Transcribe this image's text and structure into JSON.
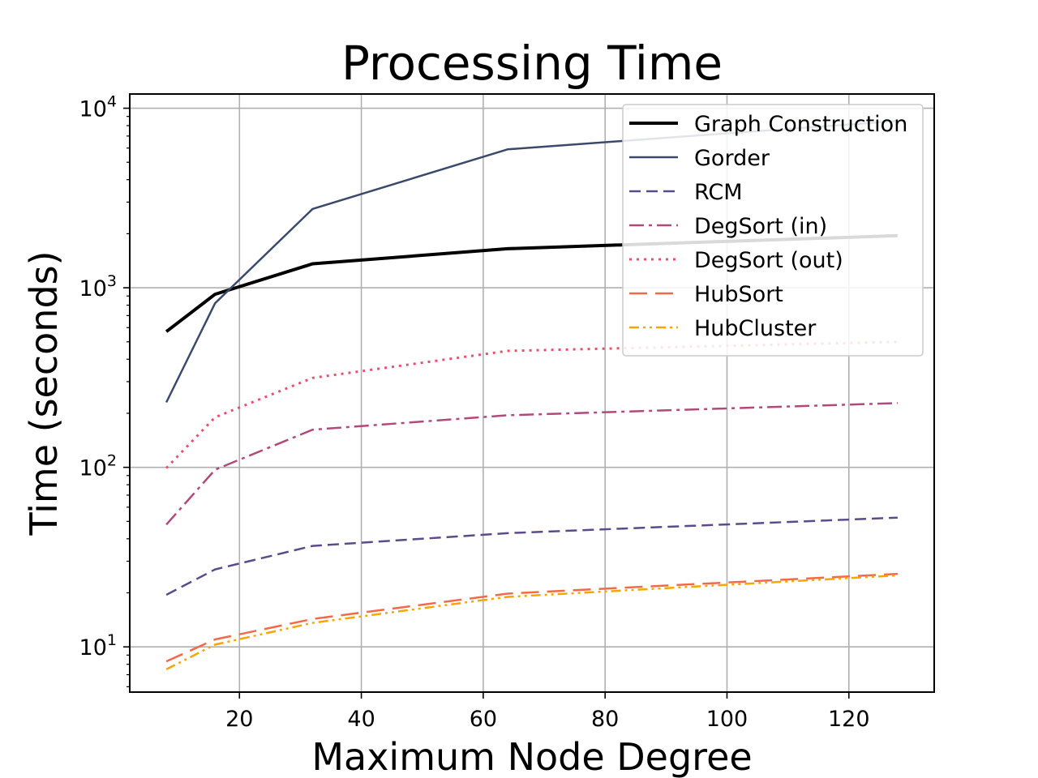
{
  "chart_data": {
    "type": "line",
    "title": "Processing Time",
    "xlabel": "Maximum Node Degree",
    "ylabel": "Time (seconds)",
    "xlim": [
      2,
      134
    ],
    "ylim": [
      5.6,
      12000
    ],
    "yscale": "log",
    "grid": true,
    "legend_position": "top-right",
    "xticks": [
      20,
      40,
      60,
      80,
      100,
      120
    ],
    "yticks": [
      {
        "value": 10,
        "base": "10",
        "exp": "1"
      },
      {
        "value": 100,
        "base": "10",
        "exp": "2"
      },
      {
        "value": 1000,
        "base": "10",
        "exp": "3"
      },
      {
        "value": 10000,
        "base": "10",
        "exp": "4"
      }
    ],
    "x": [
      8,
      16,
      32,
      64,
      128
    ],
    "series": [
      {
        "name": "Graph Construction",
        "color": "#000000",
        "style": "solid",
        "width": 4,
        "values": [
          570,
          920,
          1360,
          1650,
          1950
        ]
      },
      {
        "name": "Gorder",
        "color": "#3b4a6b",
        "style": "solid",
        "width": 2.5,
        "values": [
          230,
          820,
          2750,
          5900,
          8500
        ]
      },
      {
        "name": "RCM",
        "color": "#5c4b8a",
        "style": "dashed",
        "width": 2.5,
        "values": [
          19.5,
          27,
          36.5,
          43,
          52.5
        ]
      },
      {
        "name": "DegSort (in)",
        "color": "#b04a7a",
        "style": "dashdot",
        "width": 2.5,
        "values": [
          48,
          97,
          162,
          195,
          228
        ]
      },
      {
        "name": "DegSort (out)",
        "color": "#e8506e",
        "style": "dotted",
        "width": 3,
        "values": [
          99,
          190,
          315,
          445,
          500
        ]
      },
      {
        "name": "HubSort",
        "color": "#f26a4a",
        "style": "longdash",
        "width": 2.5,
        "values": [
          8.3,
          11,
          14.3,
          19.8,
          25.5
        ]
      },
      {
        "name": "HubCluster",
        "color": "#f7a600",
        "style": "dashdotdot",
        "width": 2.5,
        "values": [
          7.5,
          10.3,
          13.6,
          19.0,
          25.0
        ]
      }
    ]
  }
}
